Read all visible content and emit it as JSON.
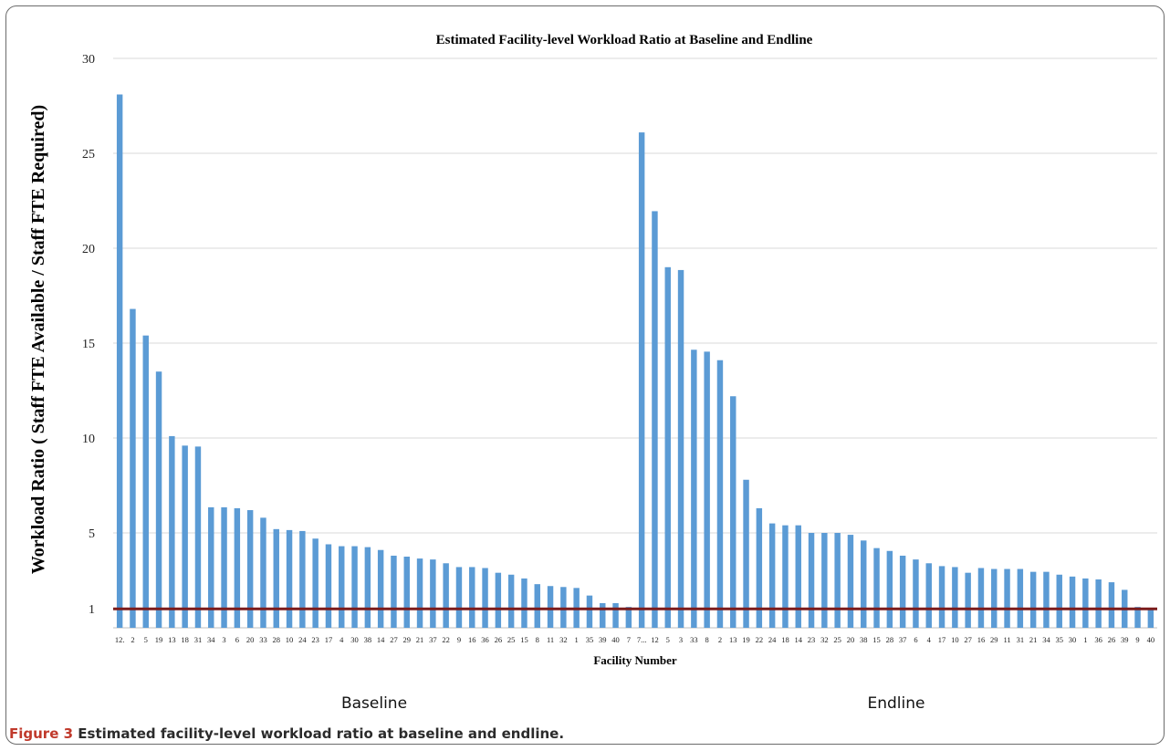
{
  "caption": {
    "figure_label": "Figure 3",
    "text": "Estimated facility-level workload ratio at baseline and endline."
  },
  "chart_data": {
    "type": "bar",
    "title": "Estimated Facility-level Workload Ratio at Baseline and Endline",
    "xlabel": "Facility Number",
    "ylabel": "Workload Ratio ( Staff FTE Available / Staff FTE Required)",
    "y_ticks": [
      "1",
      "5",
      "10",
      "15",
      "20",
      "25",
      "30"
    ],
    "ylim": [
      0,
      30
    ],
    "grid": true,
    "reference_line": {
      "value": 1,
      "color": "#7b1c1c"
    },
    "bar_color": "#5b9bd5",
    "groups": [
      {
        "label": "Baseline",
        "start": 0,
        "count": 40
      },
      {
        "label": "Endline",
        "start": 40,
        "count": 40
      }
    ],
    "categories": [
      "12.",
      "2",
      "5",
      "19",
      "13",
      "18",
      "31",
      "34",
      "3",
      "6",
      "20",
      "33",
      "28",
      "10",
      "24",
      "23",
      "17",
      "4",
      "30",
      "38",
      "14",
      "27",
      "29",
      "21",
      "37",
      "22",
      "9",
      "16",
      "36",
      "26",
      "25",
      "15",
      "8",
      "11",
      "32",
      "1",
      "35",
      "39",
      "40",
      "7",
      "7...",
      "12",
      "5",
      "3",
      "33",
      "8",
      "2",
      "13",
      "19",
      "22",
      "24",
      "18",
      "14",
      "23",
      "32",
      "25",
      "20",
      "38",
      "15",
      "28",
      "37",
      "6",
      "4",
      "17",
      "10",
      "27",
      "16",
      "29",
      "11",
      "31",
      "21",
      "34",
      "35",
      "30",
      "1",
      "36",
      "26",
      "39",
      "9",
      "40"
    ],
    "values": [
      28.1,
      16.8,
      15.4,
      13.5,
      10.1,
      9.6,
      9.55,
      6.35,
      6.35,
      6.3,
      6.2,
      5.8,
      5.2,
      5.15,
      5.1,
      4.7,
      4.4,
      4.3,
      4.3,
      4.25,
      4.1,
      3.8,
      3.75,
      3.65,
      3.6,
      3.4,
      3.2,
      3.2,
      3.15,
      2.9,
      2.8,
      2.6,
      2.3,
      2.2,
      2.15,
      2.1,
      1.7,
      1.3,
      1.3,
      1.1,
      26.1,
      21.95,
      19.0,
      18.85,
      14.65,
      14.55,
      14.1,
      12.2,
      7.8,
      6.3,
      5.5,
      5.4,
      5.4,
      5.0,
      5.0,
      5.0,
      4.9,
      4.6,
      4.2,
      4.05,
      3.8,
      3.6,
      3.4,
      3.25,
      3.2,
      2.9,
      3.15,
      3.1,
      3.1,
      3.1,
      2.95,
      2.95,
      2.8,
      2.7,
      2.6,
      2.55,
      2.4,
      2.0,
      1.1,
      1.0
    ]
  }
}
